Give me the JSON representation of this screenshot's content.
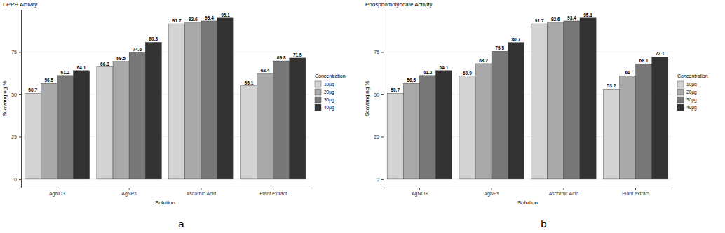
{
  "chart_data": [
    {
      "type": "bar",
      "title": "DPPH Activity",
      "x_label": "Solution",
      "y_label": "Scavanging %",
      "panel_label": "a",
      "categories": [
        "AgNO3",
        "AgNPs",
        "Ascorbic.Acid",
        "Plant.extract"
      ],
      "series": [
        {
          "name": "10µg",
          "color": "#d3d3d3",
          "values": [
            50.7,
            66.3,
            91.7,
            55.1
          ]
        },
        {
          "name": "20µg",
          "color": "#a9a9a9",
          "values": [
            56.5,
            69.5,
            92.6,
            62.4
          ]
        },
        {
          "name": "30µg",
          "color": "#777777",
          "values": [
            61.2,
            74.6,
            93.4,
            69.8
          ]
        },
        {
          "name": "40µg",
          "color": "#333333",
          "values": [
            64.1,
            80.8,
            95.1,
            71.5
          ]
        }
      ],
      "legend_title": "Concentration",
      "legend": "right",
      "ylim": [
        -5,
        100
      ],
      "yticks": [
        0,
        25,
        50,
        75
      ],
      "grid": true,
      "data_labels": true
    },
    {
      "type": "bar",
      "title": "Phosphomolybdate Activity",
      "x_label": "Solution",
      "y_label": "Scavanging %",
      "panel_label": "b",
      "categories": [
        "AgNO3",
        "AgNPs",
        "Ascorbic.Acid",
        "Plant.extract"
      ],
      "series": [
        {
          "name": "10µg",
          "color": "#d3d3d3",
          "values": [
            50.7,
            60.9,
            91.7,
            53.2
          ]
        },
        {
          "name": "20µg",
          "color": "#a9a9a9",
          "values": [
            56.5,
            68.2,
            92.6,
            61
          ]
        },
        {
          "name": "30µg",
          "color": "#777777",
          "values": [
            61.2,
            75.5,
            93.4,
            68.1
          ]
        },
        {
          "name": "40µg",
          "color": "#333333",
          "values": [
            64.1,
            80.7,
            95.1,
            72.1
          ]
        }
      ],
      "legend_title": "Concentration",
      "legend": "right",
      "ylim": [
        -5,
        100
      ],
      "yticks": [
        0,
        25,
        50,
        75
      ],
      "grid": true,
      "data_labels": true
    }
  ]
}
